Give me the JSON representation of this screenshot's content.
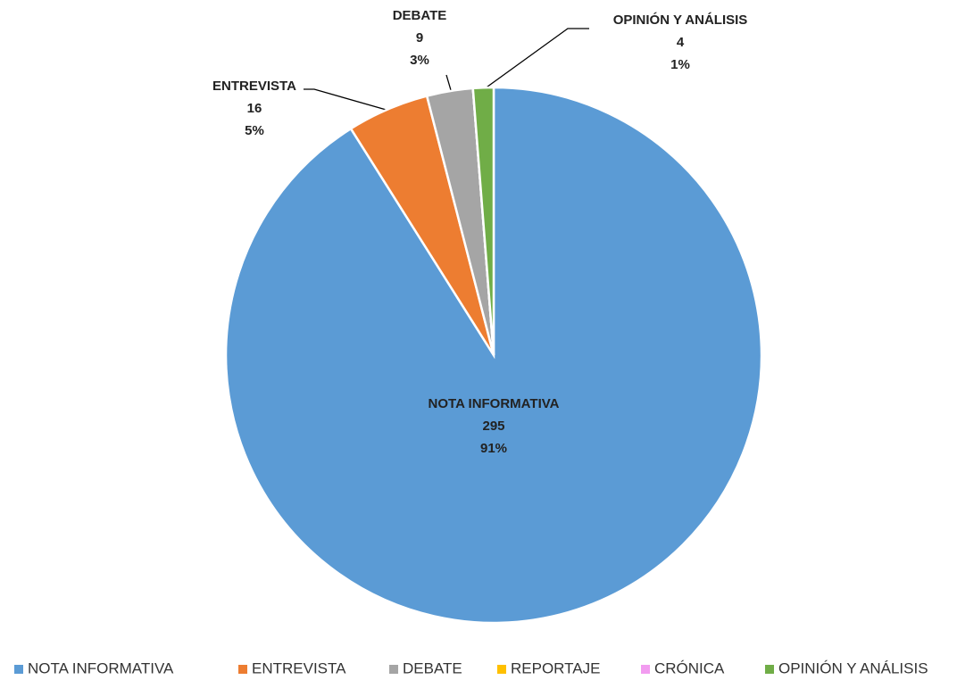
{
  "chart_data": {
    "type": "pie",
    "categories": [
      "NOTA INFORMATIVA",
      "ENTREVISTA",
      "DEBATE",
      "REPORTAJE",
      "CRÓNICA",
      "OPINIÓN Y ANÁLISIS"
    ],
    "values": [
      295,
      16,
      9,
      0,
      0,
      4
    ],
    "percent_labels": [
      "91%",
      "5%",
      "3%",
      null,
      null,
      "1%"
    ],
    "colors": [
      "#5b9bd5",
      "#ed7d31",
      "#a5a5a5",
      "#ffc000",
      "#f29cf0",
      "#70ad47"
    ],
    "legend": "bottom"
  }
}
